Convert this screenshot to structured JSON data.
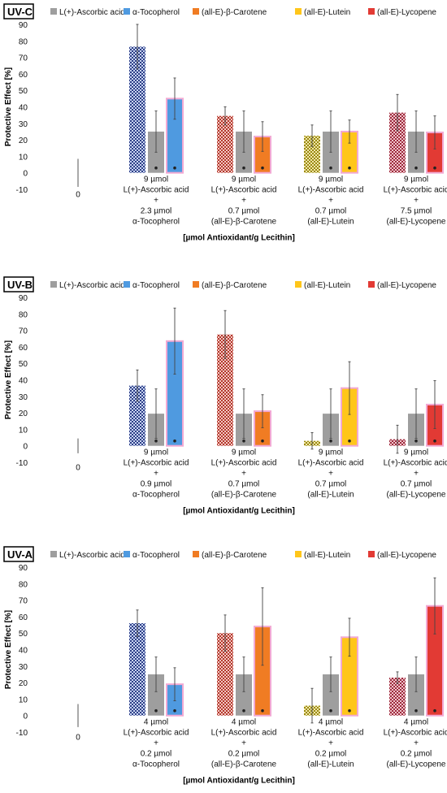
{
  "chart_data": [
    {
      "type": "bar",
      "panel_label": "UV-C",
      "ylabel": "Protective Effect [%]",
      "xlabel": "[µmol Antioxidant/g Lecithin]",
      "ylim": [
        -10,
        90
      ],
      "yticks": [
        -10,
        0,
        10,
        20,
        30,
        40,
        50,
        60,
        70,
        80,
        90
      ],
      "legend": [
        {
          "label": "L(+)-Ascorbic acid",
          "color": "#9e9e9e"
        },
        {
          "label": "α-Tocopherol",
          "color": "#4f9ae0"
        },
        {
          "label": "(all-E)-β-Carotene",
          "color": "#f07c23"
        },
        {
          "label": "(all-E)-Lutein",
          "color": "#ffc61a"
        },
        {
          "label": "(all-E)-Lycopene",
          "color": "#e23a34"
        }
      ],
      "baseline": {
        "label": "0",
        "value": 0,
        "err": 8.5
      },
      "groups": [
        {
          "lines": [
            "9 µmol",
            "L(+)-Ascorbic acid",
            "+",
            "2.3 µmol",
            "α-Tocopherol"
          ],
          "bars": [
            {
              "kind": "combo",
              "value": 76.5,
              "err": 13.5,
              "color": "#3a64c8"
            },
            {
              "kind": "ascorbic",
              "value": 25,
              "err": 12.5,
              "color": "#9e9e9e"
            },
            {
              "kind": "single",
              "value": 45,
              "err": 12.5,
              "color": "#4f9ae0"
            }
          ]
        },
        {
          "lines": [
            "9 µmol",
            "L(+)-Ascorbic acid",
            "+",
            "0.7 µmol",
            "(all-E)-β-Carotene"
          ],
          "bars": [
            {
              "kind": "combo",
              "value": 34.5,
              "err": 5.5,
              "color": "#e0392b"
            },
            {
              "kind": "ascorbic",
              "value": 25,
              "err": 12.5,
              "color": "#9e9e9e"
            },
            {
              "kind": "single",
              "value": 22,
              "err": 9,
              "color": "#f07c23"
            }
          ]
        },
        {
          "lines": [
            "9 µmol",
            "L(+)-Ascorbic acid",
            "+",
            "0.7 µmol",
            "(all-E)-Lutein"
          ],
          "bars": [
            {
              "kind": "combo",
              "value": 22.5,
              "err": 6.5,
              "color": "#c8a800"
            },
            {
              "kind": "ascorbic",
              "value": 25,
              "err": 12.5,
              "color": "#9e9e9e"
            },
            {
              "kind": "single",
              "value": 25,
              "err": 7,
              "color": "#ffc61a"
            }
          ]
        },
        {
          "lines": [
            "9 µmol",
            "L(+)-Ascorbic acid",
            "+",
            "7.5 µmol",
            "(all-E)-Lycopene"
          ],
          "bars": [
            {
              "kind": "combo",
              "value": 36.5,
              "err": 11,
              "color": "#d2354a"
            },
            {
              "kind": "ascorbic",
              "value": 25,
              "err": 12.5,
              "color": "#9e9e9e"
            },
            {
              "kind": "single",
              "value": 24.5,
              "err": 10,
              "color": "#e23a34"
            }
          ]
        }
      ]
    },
    {
      "type": "bar",
      "panel_label": "UV-B",
      "ylabel": "Protective Effect [%]",
      "xlabel": "[µmol Antioxidant/g Lecithin]",
      "ylim": [
        -10,
        90
      ],
      "yticks": [
        -10,
        0,
        10,
        20,
        30,
        40,
        50,
        60,
        70,
        80,
        90
      ],
      "legend": [
        {
          "label": "L(+)-Ascorbic acid",
          "color": "#9e9e9e"
        },
        {
          "label": "α-Tocopherol",
          "color": "#4f9ae0"
        },
        {
          "label": "(all-E)-β-Carotene",
          "color": "#f07c23"
        },
        {
          "label": "(all-E)-Lutein",
          "color": "#ffc61a"
        },
        {
          "label": "(all-E)-Lycopene",
          "color": "#e23a34"
        }
      ],
      "baseline": {
        "label": "0",
        "value": 0,
        "err": 4.5
      },
      "groups": [
        {
          "lines": [
            "9 µmol",
            "L(+)-Ascorbic acid",
            "+",
            "0.9 µmol",
            "α-Tocopherol"
          ],
          "bars": [
            {
              "kind": "combo",
              "value": 36.5,
              "err": 9.5,
              "color": "#3a64c8"
            },
            {
              "kind": "ascorbic",
              "value": 19.5,
              "err": 15,
              "color": "#9e9e9e"
            },
            {
              "kind": "single",
              "value": 63.5,
              "err": 20,
              "color": "#4f9ae0"
            }
          ]
        },
        {
          "lines": [
            "9 µmol",
            "L(+)-Ascorbic acid",
            "+",
            "0.7 µmol",
            "(all-E)-β-Carotene"
          ],
          "bars": [
            {
              "kind": "combo",
              "value": 67.5,
              "err": 14.5,
              "color": "#e0392b"
            },
            {
              "kind": "ascorbic",
              "value": 19.5,
              "err": 15,
              "color": "#9e9e9e"
            },
            {
              "kind": "single",
              "value": 21,
              "err": 10,
              "color": "#f07c23"
            }
          ]
        },
        {
          "lines": [
            "9 µmol",
            "L(+)-Ascorbic acid",
            "+",
            "0.7 µmol",
            "(all-E)-Lutein"
          ],
          "bars": [
            {
              "kind": "combo",
              "value": 3,
              "err": 5,
              "color": "#c8a800"
            },
            {
              "kind": "ascorbic",
              "value": 19.5,
              "err": 15,
              "color": "#9e9e9e"
            },
            {
              "kind": "single",
              "value": 35,
              "err": 16,
              "color": "#ffc61a"
            }
          ]
        },
        {
          "lines": [
            "9 µmol",
            "L(+)-Ascorbic acid",
            "+",
            "0.7 µmol",
            "(all-E)-Lycopene"
          ],
          "bars": [
            {
              "kind": "combo",
              "value": 4,
              "err": 8.5,
              "color": "#d2354a"
            },
            {
              "kind": "ascorbic",
              "value": 19.5,
              "err": 15,
              "color": "#9e9e9e"
            },
            {
              "kind": "single",
              "value": 25,
              "err": 14.5,
              "color": "#e23a34"
            }
          ]
        }
      ]
    },
    {
      "type": "bar",
      "panel_label": "UV-A",
      "ylabel": "Protective Effect [%]",
      "xlabel": "[µmol Antioxidant/g Lecithin]",
      "ylim": [
        -10,
        90
      ],
      "yticks": [
        -10,
        0,
        10,
        20,
        30,
        40,
        50,
        60,
        70,
        80,
        90
      ],
      "legend": [
        {
          "label": "L(+)-Ascorbic acid",
          "color": "#9e9e9e"
        },
        {
          "label": "α-Tocopherol",
          "color": "#4f9ae0"
        },
        {
          "label": "(all-E)-β-Carotene",
          "color": "#f07c23"
        },
        {
          "label": "(all-E)-Lutein",
          "color": "#ffc61a"
        },
        {
          "label": "(all-E)-Lycopene",
          "color": "#e23a34"
        }
      ],
      "baseline": {
        "label": "0",
        "value": 0,
        "err": 7
      },
      "groups": [
        {
          "lines": [
            "4 µmol",
            "L(+)-Ascorbic acid",
            "+",
            "0.2 µmol",
            "α-Tocopherol"
          ],
          "bars": [
            {
              "kind": "combo",
              "value": 56,
              "err": 8,
              "color": "#3a64c8"
            },
            {
              "kind": "ascorbic",
              "value": 25,
              "err": 10.5,
              "color": "#9e9e9e"
            },
            {
              "kind": "single",
              "value": 19,
              "err": 10,
              "color": "#4f9ae0"
            }
          ]
        },
        {
          "lines": [
            "4 µmol",
            "L(+)-Ascorbic acid",
            "+",
            "0.2 µmol",
            "(all-E)-β-Carotene"
          ],
          "bars": [
            {
              "kind": "combo",
              "value": 50,
              "err": 11,
              "color": "#e0392b"
            },
            {
              "kind": "ascorbic",
              "value": 25,
              "err": 10.5,
              "color": "#9e9e9e"
            },
            {
              "kind": "single",
              "value": 54,
              "err": 23.5,
              "color": "#f07c23"
            }
          ]
        },
        {
          "lines": [
            "4 µmol",
            "L(+)-Ascorbic acid",
            "+",
            "0.2 µmol",
            "(all-E)-Lutein"
          ],
          "bars": [
            {
              "kind": "combo",
              "value": 6,
              "err": 10.5,
              "color": "#c8a800"
            },
            {
              "kind": "ascorbic",
              "value": 25,
              "err": 10.5,
              "color": "#9e9e9e"
            },
            {
              "kind": "single",
              "value": 47.5,
              "err": 11.5,
              "color": "#ffc61a"
            }
          ]
        },
        {
          "lines": [
            "4 µmol",
            "L(+)-Ascorbic acid",
            "+",
            "0.2 µmol",
            "(all-E)-Lycopene"
          ],
          "bars": [
            {
              "kind": "combo",
              "value": 23,
              "err": 3.5,
              "color": "#d2354a"
            },
            {
              "kind": "ascorbic",
              "value": 25,
              "err": 10.5,
              "color": "#9e9e9e"
            },
            {
              "kind": "single",
              "value": 66.5,
              "err": 17,
              "color": "#e23a34"
            }
          ]
        }
      ]
    }
  ]
}
